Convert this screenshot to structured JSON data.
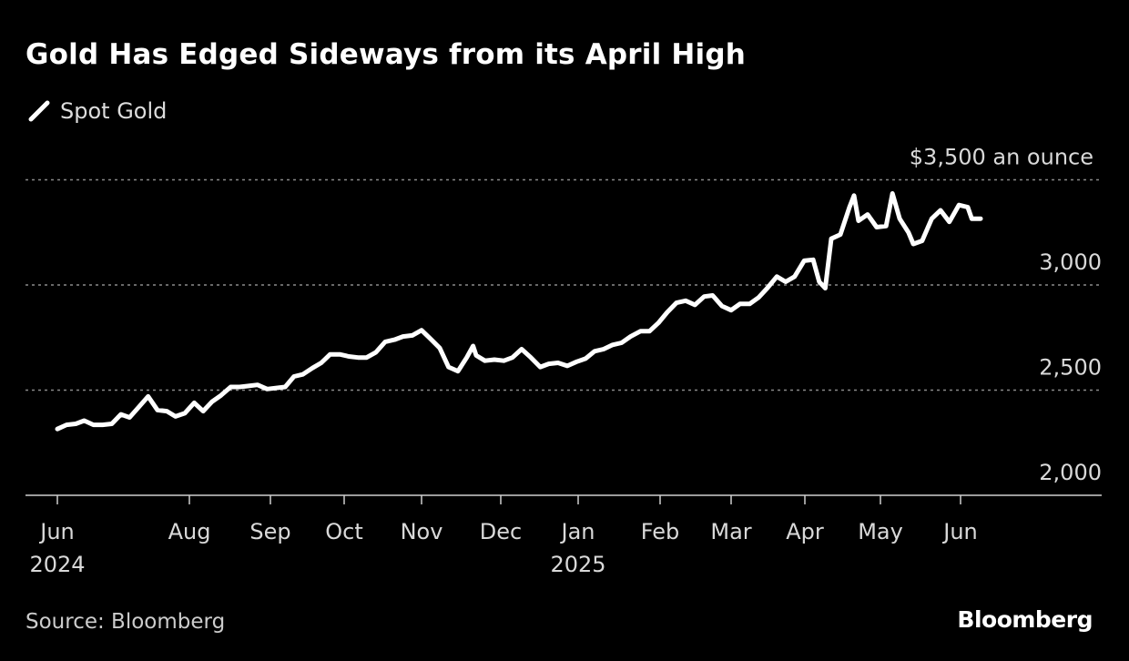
{
  "chart_data": {
    "type": "line",
    "title": "Gold Has Edged Sideways from its April High",
    "legend": [
      {
        "name": "Spot Gold",
        "color": "#ffffff"
      }
    ],
    "legend_placement": "top-left",
    "ylabel": "$ an ounce",
    "y_unit_label": "$3,500 an ounce",
    "ylim": [
      2000,
      3500
    ],
    "grid": true,
    "y_ticks": [
      {
        "value": 3500,
        "label": "$3,500 an ounce"
      },
      {
        "value": 3000,
        "label": "3,000"
      },
      {
        "value": 2500,
        "label": "2,500"
      },
      {
        "value": 2000,
        "label": "2,000"
      }
    ],
    "x_unit": "months since Jun 2024",
    "x_ticks": [
      {
        "m": 0,
        "label": "Jun",
        "sub": "2024"
      },
      {
        "m": 2,
        "label": "Aug",
        "sub": ""
      },
      {
        "m": 3,
        "label": "Sep",
        "sub": ""
      },
      {
        "m": 4,
        "label": "Oct",
        "sub": ""
      },
      {
        "m": 5,
        "label": "Nov",
        "sub": ""
      },
      {
        "m": 6,
        "label": "Dec",
        "sub": ""
      },
      {
        "m": 7,
        "label": "Jan",
        "sub": "2025"
      },
      {
        "m": 8,
        "label": "Feb",
        "sub": ""
      },
      {
        "m": 9,
        "label": "Mar",
        "sub": ""
      },
      {
        "m": 10,
        "label": "Apr",
        "sub": ""
      },
      {
        "m": 11,
        "label": "May",
        "sub": ""
      },
      {
        "m": 12,
        "label": "Jun",
        "sub": ""
      }
    ],
    "series": [
      {
        "name": "Spot Gold",
        "points": [
          [
            0,
            2315
          ],
          [
            0.14,
            2335
          ],
          [
            0.28,
            2340
          ],
          [
            0.41,
            2355
          ],
          [
            0.55,
            2335
          ],
          [
            0.69,
            2335
          ],
          [
            0.83,
            2340
          ],
          [
            0.97,
            2385
          ],
          [
            1.1,
            2370
          ],
          [
            1.24,
            2420
          ],
          [
            1.38,
            2470
          ],
          [
            1.52,
            2405
          ],
          [
            1.66,
            2400
          ],
          [
            1.79,
            2375
          ],
          [
            1.93,
            2390
          ],
          [
            2.06,
            2440
          ],
          [
            2.17,
            2400
          ],
          [
            2.28,
            2445
          ],
          [
            2.39,
            2475
          ],
          [
            2.51,
            2515
          ],
          [
            2.62,
            2515
          ],
          [
            2.73,
            2520
          ],
          [
            2.84,
            2525
          ],
          [
            2.96,
            2505
          ],
          [
            3.07,
            2510
          ],
          [
            3.2,
            2515
          ],
          [
            3.32,
            2565
          ],
          [
            3.44,
            2575
          ],
          [
            3.57,
            2605
          ],
          [
            3.69,
            2630
          ],
          [
            3.81,
            2670
          ],
          [
            3.94,
            2670
          ],
          [
            4.06,
            2660
          ],
          [
            4.18,
            2655
          ],
          [
            4.29,
            2655
          ],
          [
            4.41,
            2680
          ],
          [
            4.53,
            2730
          ],
          [
            4.65,
            2740
          ],
          [
            4.76,
            2755
          ],
          [
            4.88,
            2760
          ],
          [
            5.0,
            2785
          ],
          [
            5.11,
            2745
          ],
          [
            5.23,
            2700
          ],
          [
            5.34,
            2610
          ],
          [
            5.46,
            2590
          ],
          [
            5.57,
            2655
          ],
          [
            5.65,
            2710
          ],
          [
            5.69,
            2665
          ],
          [
            5.8,
            2640
          ],
          [
            5.92,
            2645
          ],
          [
            6.04,
            2640
          ],
          [
            6.15,
            2655
          ],
          [
            6.27,
            2695
          ],
          [
            6.39,
            2655
          ],
          [
            6.51,
            2610
          ],
          [
            6.62,
            2625
          ],
          [
            6.74,
            2630
          ],
          [
            6.86,
            2615
          ],
          [
            6.98,
            2635
          ],
          [
            7.09,
            2650
          ],
          [
            7.2,
            2685
          ],
          [
            7.31,
            2695
          ],
          [
            7.42,
            2715
          ],
          [
            7.53,
            2725
          ],
          [
            7.64,
            2755
          ],
          [
            7.76,
            2780
          ],
          [
            7.87,
            2780
          ],
          [
            7.98,
            2820
          ],
          [
            8.1,
            2870
          ],
          [
            8.23,
            2915
          ],
          [
            8.36,
            2925
          ],
          [
            8.49,
            2905
          ],
          [
            8.62,
            2945
          ],
          [
            8.74,
            2950
          ],
          [
            8.87,
            2900
          ],
          [
            9.0,
            2880
          ],
          [
            9.12,
            2910
          ],
          [
            9.25,
            2910
          ],
          [
            9.37,
            2940
          ],
          [
            9.49,
            2985
          ],
          [
            9.62,
            3040
          ],
          [
            9.74,
            3015
          ],
          [
            9.86,
            3040
          ],
          [
            9.99,
            3115
          ],
          [
            10.11,
            3120
          ],
          [
            10.19,
            3015
          ],
          [
            10.27,
            2985
          ],
          [
            10.35,
            3220
          ],
          [
            10.47,
            3240
          ],
          [
            10.59,
            3370
          ],
          [
            10.65,
            3425
          ],
          [
            10.71,
            3305
          ],
          [
            10.83,
            3335
          ],
          [
            10.95,
            3275
          ],
          [
            11.07,
            3280
          ],
          [
            11.15,
            3435
          ],
          [
            11.24,
            3315
          ],
          [
            11.35,
            3250
          ],
          [
            11.41,
            3195
          ],
          [
            11.52,
            3210
          ],
          [
            11.64,
            3315
          ],
          [
            11.75,
            3355
          ],
          [
            11.86,
            3300
          ],
          [
            11.98,
            3380
          ],
          [
            12.09,
            3370
          ],
          [
            12.14,
            3315
          ],
          [
            12.25,
            3315
          ]
        ]
      }
    ],
    "source": "Source: Bloomberg"
  },
  "header": {
    "title": "Gold Has Edged Sideways from its April High",
    "legend_label": "Spot Gold"
  },
  "footer": {
    "source": "Source: Bloomberg",
    "logo": "Bloomberg"
  }
}
